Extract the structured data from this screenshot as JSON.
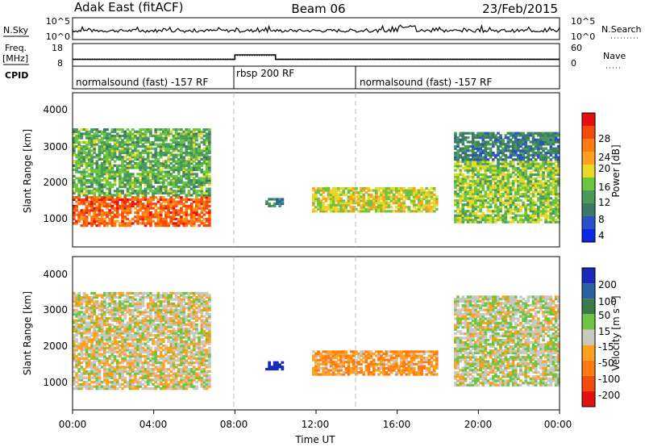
{
  "header": {
    "station": "Adak East (fitACF)",
    "beam": "Beam 06",
    "date": "23/Feb/2015"
  },
  "top_panels": {
    "nsky_label": "N.Sky",
    "nsky_ticks": [
      "10^5",
      "10^0"
    ],
    "nsearch_label": "N.Search",
    "nsearch_ticks": [
      "10^5",
      "10^0"
    ],
    "freq_label_line1": "Freq.",
    "freq_label_line2": "[MHz]",
    "freq_ticks": [
      "18",
      "8"
    ],
    "nave_label": "Nave",
    "nave_ticks": [
      "60",
      "0"
    ],
    "cpid_label": "CPID",
    "cpid_segments": [
      {
        "label": "normalsound (fast) -157 RF",
        "start_h": 0,
        "end_h": 8
      },
      {
        "label": "rbsp 200 RF",
        "start_h": 8,
        "end_h": 14
      },
      {
        "label": "normalsound (fast) -157 RF",
        "start_h": 14,
        "end_h": 24
      }
    ]
  },
  "power_panel": {
    "ylabel": "Slant Range [km]",
    "yticks": [
      "4000",
      "3000",
      "2000",
      "1000"
    ],
    "colorbar_label": "Power [dB]",
    "colorbar_ticks": [
      "28",
      "24",
      "20",
      "16",
      "12",
      "8",
      "4"
    ],
    "colors": [
      "#0a28e0",
      "#2a52c8",
      "#3d7a66",
      "#4a9a5a",
      "#6cc440",
      "#e8d82a",
      "#ffa020",
      "#ff7a10",
      "#f44a0a",
      "#e61010"
    ]
  },
  "velocity_panel": {
    "ylabel": "Slant Range [km]",
    "yticks": [
      "4000",
      "3000",
      "2000",
      "1000"
    ],
    "colorbar_label": "Velocity [m s⁻¹]",
    "colorbar_ticks": [
      "200",
      "100",
      "50",
      "15",
      "-15",
      "-50",
      "-100",
      "-200"
    ],
    "colors": [
      "#1a2ab8",
      "#2a62a4",
      "#3d7a4a",
      "#6cc440",
      "#c8c8c0",
      "#ffa020",
      "#ff7a10",
      "#f44a0a",
      "#e61010"
    ]
  },
  "x_axis": {
    "ticks": [
      "00:00",
      "04:00",
      "08:00",
      "12:00",
      "16:00",
      "20:00",
      "00:00"
    ],
    "label": "Time UT"
  },
  "chart_data": {
    "type": "heatmap",
    "x_range_hours": [
      0,
      24
    ],
    "y_range_km": [
      180,
      4500
    ],
    "power_db_range": [
      0,
      30
    ],
    "velocity_range": [
      -200,
      200
    ],
    "freq_step": {
      "times_h": [
        0,
        8,
        10,
        18,
        24
      ],
      "freq_mhz": [
        11,
        13,
        11,
        11,
        11
      ]
    },
    "echo_regions": [
      {
        "t0": 0.0,
        "t1": 6.8,
        "r0": 750,
        "r1": 1600,
        "power_db": 24,
        "velocity": -5
      },
      {
        "t0": 0.0,
        "t1": 6.8,
        "r0": 1600,
        "r1": 3500,
        "power_db": 12,
        "velocity": -5
      },
      {
        "t0": 9.5,
        "t1": 10.4,
        "r0": 1300,
        "r1": 1550,
        "power_db": 8,
        "velocity": 200
      },
      {
        "t0": 11.8,
        "t1": 18.0,
        "r0": 1150,
        "r1": 1850,
        "power_db": 16,
        "velocity": -60
      },
      {
        "t0": 18.8,
        "t1": 24.0,
        "r0": 850,
        "r1": 2600,
        "power_db": 14,
        "velocity": 5
      },
      {
        "t0": 18.8,
        "t1": 24.0,
        "r0": 2600,
        "r1": 3400,
        "power_db": 8,
        "velocity": 5
      }
    ]
  }
}
